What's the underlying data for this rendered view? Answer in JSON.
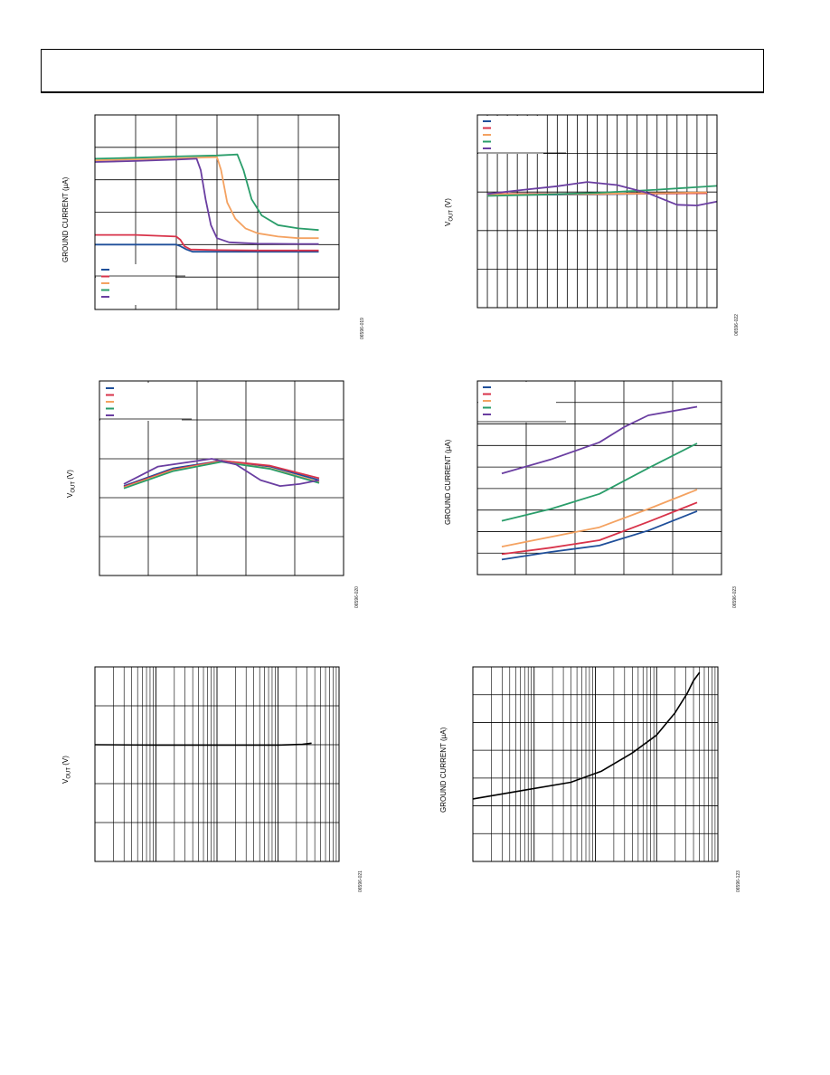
{
  "page": {
    "header": ""
  },
  "panels": [
    {
      "ylabel": "GROUND CURRENT (µA)",
      "ylabel_sub": "",
      "figure_id": "06596-019",
      "legend": {
        "placement": "bottom-left",
        "colors": [
          "#1f4f9a",
          "#d8334a",
          "#f4a261",
          "#2a9d6a",
          "#6a3ea1"
        ]
      },
      "grid": {
        "type": "linear",
        "xdiv": 6,
        "ydiv": 6
      }
    },
    {
      "ylabel": "V",
      "ylabel_sub": "OUT",
      "ylabel_tail": " (V)",
      "figure_id": "06596-022",
      "legend": {
        "placement": "top-left",
        "colors": [
          "#1f4f9a",
          "#d8334a",
          "#f4a261",
          "#2a9d6a",
          "#6a3ea1"
        ]
      },
      "grid": {
        "type": "linear",
        "xdiv": 24,
        "ydiv": 5
      }
    },
    {
      "ylabel": "V",
      "ylabel_sub": "OUT",
      "ylabel_tail": " (V)",
      "figure_id": "06596-020",
      "legend": {
        "placement": "top-left",
        "colors": [
          "#1f4f9a",
          "#d8334a",
          "#f4a261",
          "#2a9d6a",
          "#6a3ea1"
        ]
      },
      "grid": {
        "type": "linear",
        "xdiv": 5,
        "ydiv": 5
      }
    },
    {
      "ylabel": "GROUND CURRENT (µA)",
      "ylabel_sub": "",
      "figure_id": "06596-023",
      "legend": {
        "placement": "top-left",
        "colors": [
          "#1f4f9a",
          "#d8334a",
          "#f4a261",
          "#2a9d6a",
          "#6a3ea1"
        ]
      },
      "grid": {
        "type": "linear",
        "xdiv": 5,
        "ydiv": 9
      }
    },
    {
      "ylabel": "V",
      "ylabel_sub": "OUT",
      "ylabel_tail": " (V)",
      "figure_id": "06596-021",
      "legend": null,
      "grid": {
        "type": "log-x",
        "decades": 4,
        "ydiv": 5
      }
    },
    {
      "ylabel": "GROUND CURRENT (µA)",
      "ylabel_sub": "",
      "figure_id": "06596-123",
      "legend": null,
      "grid": {
        "type": "log-x",
        "decades": 4,
        "ydiv": 7
      }
    }
  ],
  "chart_data": [
    {
      "type": "line",
      "xlim": [
        0,
        6
      ],
      "ylim": [
        0,
        6
      ],
      "series": [
        {
          "color": "#1f4f9a",
          "x": [
            0,
            1,
            2,
            2.1,
            2.25,
            2.4,
            3,
            4,
            5,
            5.5
          ],
          "y": [
            2,
            2,
            2,
            1.95,
            1.85,
            1.78,
            1.78,
            1.78,
            1.78,
            1.78
          ]
        },
        {
          "color": "#d8334a",
          "x": [
            0,
            1,
            2,
            2.1,
            2.2,
            2.35,
            3,
            4,
            5,
            5.5
          ],
          "y": [
            2.3,
            2.3,
            2.25,
            2.15,
            1.95,
            1.85,
            1.83,
            1.82,
            1.82,
            1.82
          ]
        },
        {
          "color": "#f4a261",
          "x": [
            0,
            1,
            2,
            3,
            3.1,
            3.25,
            3.45,
            3.7,
            4,
            4.5,
            5,
            5.5
          ],
          "y": [
            4.6,
            4.63,
            4.66,
            4.7,
            4.3,
            3.3,
            2.8,
            2.5,
            2.35,
            2.25,
            2.2,
            2.2
          ]
        },
        {
          "color": "#2a9d6a",
          "x": [
            0,
            1,
            2,
            3,
            3.5,
            3.65,
            3.85,
            4.1,
            4.5,
            5,
            5.5
          ],
          "y": [
            4.65,
            4.68,
            4.72,
            4.75,
            4.78,
            4.3,
            3.4,
            2.9,
            2.6,
            2.5,
            2.45
          ]
        },
        {
          "color": "#6a3ea1",
          "x": [
            0,
            1,
            2,
            2.5,
            2.6,
            2.72,
            2.85,
            3,
            3.3,
            4,
            5,
            5.5
          ],
          "y": [
            4.55,
            4.58,
            4.62,
            4.65,
            4.3,
            3.4,
            2.6,
            2.2,
            2.07,
            2.03,
            2.02,
            2.02
          ]
        }
      ]
    },
    {
      "type": "line",
      "xlim": [
        0,
        24
      ],
      "ylim": [
        0,
        5
      ],
      "series": [
        {
          "color": "#1f4f9a",
          "x": [
            1,
            6,
            12,
            18,
            23
          ],
          "y": [
            2.93,
            2.93,
            2.94,
            2.96,
            2.97
          ]
        },
        {
          "color": "#d8334a",
          "x": [
            1,
            6,
            12,
            18,
            23
          ],
          "y": [
            2.95,
            2.95,
            2.95,
            2.96,
            2.97
          ]
        },
        {
          "color": "#f4a261",
          "x": [
            1,
            6,
            12,
            18,
            23
          ],
          "y": [
            2.94,
            2.94,
            2.95,
            2.97,
            2.99
          ]
        },
        {
          "color": "#2a9d6a",
          "x": [
            1,
            6,
            12,
            18,
            24
          ],
          "y": [
            2.9,
            2.93,
            2.98,
            3.06,
            3.16
          ]
        },
        {
          "color": "#6a3ea1",
          "x": [
            1,
            4,
            8,
            11,
            14,
            17,
            20,
            22,
            24
          ],
          "y": [
            2.95,
            3.04,
            3.15,
            3.26,
            3.18,
            2.98,
            2.67,
            2.65,
            2.75
          ]
        }
      ]
    },
    {
      "type": "line",
      "xlim": [
        0,
        5
      ],
      "ylim": [
        0,
        5
      ],
      "series": [
        {
          "color": "#1f4f9a",
          "x": [
            0.5,
            1.5,
            2.5,
            3.5,
            4.5
          ],
          "y": [
            2.3,
            2.75,
            2.95,
            2.8,
            2.45
          ]
        },
        {
          "color": "#d8334a",
          "x": [
            0.5,
            1.5,
            2.5,
            3.5,
            4.5
          ],
          "y": [
            2.28,
            2.72,
            2.95,
            2.82,
            2.5
          ]
        },
        {
          "color": "#f4a261",
          "x": [
            0.5,
            1.5,
            2.5,
            3.5,
            4.5
          ],
          "y": [
            2.26,
            2.7,
            2.93,
            2.75,
            2.4
          ]
        },
        {
          "color": "#2a9d6a",
          "x": [
            0.5,
            1.5,
            2.5,
            3.5,
            4.5
          ],
          "y": [
            2.24,
            2.68,
            2.92,
            2.74,
            2.38
          ]
        },
        {
          "color": "#6a3ea1",
          "x": [
            0.5,
            1.2,
            2.3,
            2.8,
            3.3,
            3.7,
            4.1,
            4.5
          ],
          "y": [
            2.35,
            2.8,
            3.0,
            2.85,
            2.45,
            2.3,
            2.35,
            2.45
          ]
        }
      ]
    },
    {
      "type": "line",
      "xlim": [
        0,
        5
      ],
      "ylim": [
        0,
        9
      ],
      "series": [
        {
          "color": "#1f4f9a",
          "x": [
            0.5,
            1.5,
            2.5,
            3.5,
            4.5
          ],
          "y": [
            0.7,
            1.05,
            1.35,
            2.05,
            2.95
          ]
        },
        {
          "color": "#d8334a",
          "x": [
            0.5,
            1.5,
            2.5,
            3.5,
            4.5
          ],
          "y": [
            0.95,
            1.25,
            1.6,
            2.45,
            3.35
          ]
        },
        {
          "color": "#f4a261",
          "x": [
            0.5,
            1.5,
            2.5,
            3.5,
            4.5
          ],
          "y": [
            1.3,
            1.75,
            2.2,
            3.05,
            3.95
          ]
        },
        {
          "color": "#2a9d6a",
          "x": [
            0.5,
            1.5,
            2.5,
            3.5,
            4.5
          ],
          "y": [
            2.5,
            3.05,
            3.75,
            4.95,
            6.1
          ]
        },
        {
          "color": "#6a3ea1",
          "x": [
            0.5,
            1.5,
            2.5,
            3.0,
            3.5,
            4.5
          ],
          "y": [
            4.7,
            5.35,
            6.15,
            6.85,
            7.4,
            7.8
          ]
        }
      ]
    },
    {
      "type": "line",
      "xlim": [
        0,
        4
      ],
      "ylim": [
        0,
        5
      ],
      "series": [
        {
          "color": "#000000",
          "x": [
            0,
            1,
            2,
            3,
            3.4,
            3.55
          ],
          "y": [
            3.0,
            2.99,
            2.99,
            2.99,
            3.01,
            3.04
          ]
        }
      ]
    },
    {
      "type": "line",
      "xlim": [
        0,
        4
      ],
      "ylim": [
        0,
        7
      ],
      "series": [
        {
          "color": "#000000",
          "x": [
            0,
            0.8,
            1.6,
            2.1,
            2.6,
            3.0,
            3.3,
            3.5,
            3.6,
            3.7
          ],
          "y": [
            2.25,
            2.55,
            2.85,
            3.25,
            3.9,
            4.55,
            5.35,
            6.05,
            6.5,
            6.8
          ]
        }
      ]
    }
  ]
}
